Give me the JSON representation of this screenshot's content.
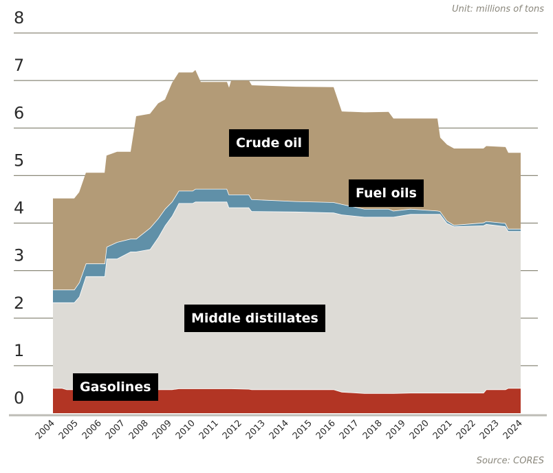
{
  "unit_note": "Unit: millions of tons",
  "source_note": "Source: CORES",
  "colors": {
    "crude": "#b39b77",
    "fuel": "#6090a8",
    "middle": "#dddbd6",
    "gasoline": "#b23524",
    "grid": "#8a8878"
  },
  "chart_data": {
    "type": "area",
    "stacked": true,
    "title": "",
    "xlabel": "",
    "ylabel": "",
    "ylim": [
      0,
      8
    ],
    "xlim": [
      2004,
      2024
    ],
    "grid": true,
    "yticks": [
      "0",
      "1",
      "2",
      "3",
      "4",
      "5",
      "6",
      "7",
      "8"
    ],
    "xticks": [
      "2004",
      "2005",
      "2006",
      "2007",
      "2008",
      "2009",
      "2010",
      "2011",
      "2012",
      "2013",
      "2014",
      "2015",
      "2016",
      "2017",
      "2018",
      "2019",
      "2020",
      "2021",
      "2022",
      "2023",
      "2024"
    ],
    "x": [
      2004.0,
      2004.38,
      2004.59,
      2004.91,
      2005.12,
      2005.41,
      2006.21,
      2006.29,
      2006.74,
      2007.32,
      2007.56,
      2008.15,
      2008.5,
      2008.79,
      2009.09,
      2009.38,
      2009.97,
      2010.09,
      2010.32,
      2011.44,
      2011.53,
      2011.62,
      2012.38,
      2012.5,
      2014.38,
      2016.0,
      2016.35,
      2017.32,
      2018.35,
      2018.56,
      2019.29,
      2020.44,
      2020.56,
      2020.85,
      2021.15,
      2022.41,
      2022.53,
      2023.35,
      2023.47,
      2024.0
    ],
    "series": [
      {
        "name": "Gasolines",
        "values": [
          0.53,
          0.53,
          0.5,
          0.5,
          0.5,
          0.5,
          0.5,
          0.5,
          0.5,
          0.5,
          0.5,
          0.5,
          0.5,
          0.5,
          0.5,
          0.52,
          0.52,
          0.52,
          0.52,
          0.52,
          0.52,
          0.52,
          0.51,
          0.5,
          0.5,
          0.5,
          0.45,
          0.42,
          0.42,
          0.42,
          0.43,
          0.43,
          0.43,
          0.43,
          0.43,
          0.43,
          0.5,
          0.5,
          0.53,
          0.53
        ]
      },
      {
        "name": "Middle distillates",
        "values": [
          1.8,
          1.8,
          1.83,
          1.83,
          1.95,
          2.38,
          2.38,
          2.75,
          2.75,
          2.9,
          2.9,
          2.95,
          3.2,
          3.45,
          3.65,
          3.9,
          3.9,
          3.93,
          3.93,
          3.93,
          3.81,
          3.81,
          3.82,
          3.75,
          3.74,
          3.72,
          3.73,
          3.71,
          3.71,
          3.71,
          3.76,
          3.76,
          3.76,
          3.57,
          3.5,
          3.52,
          3.48,
          3.43,
          3.3,
          3.3
        ]
      },
      {
        "name": "Fuel oils",
        "values": [
          0.27,
          0.27,
          0.27,
          0.27,
          0.3,
          0.27,
          0.27,
          0.25,
          0.35,
          0.27,
          0.27,
          0.45,
          0.4,
          0.35,
          0.3,
          0.26,
          0.26,
          0.27,
          0.27,
          0.27,
          0.27,
          0.27,
          0.27,
          0.25,
          0.22,
          0.22,
          0.22,
          0.17,
          0.17,
          0.13,
          0.11,
          0.07,
          0.06,
          0.05,
          0.03,
          0.06,
          0.06,
          0.07,
          0.05,
          0.05
        ]
      },
      {
        "name": "Crude oil",
        "values": [
          1.92,
          1.92,
          1.92,
          1.92,
          1.9,
          1.91,
          1.91,
          1.92,
          1.9,
          1.83,
          2.58,
          2.4,
          2.42,
          2.3,
          2.5,
          2.49,
          2.49,
          2.5,
          2.25,
          2.25,
          2.25,
          2.4,
          2.4,
          2.4,
          2.41,
          2.42,
          1.95,
          2.03,
          2.04,
          1.94,
          1.9,
          1.94,
          1.55,
          1.6,
          1.61,
          1.56,
          1.58,
          1.6,
          1.6,
          1.6
        ]
      }
    ]
  }
}
